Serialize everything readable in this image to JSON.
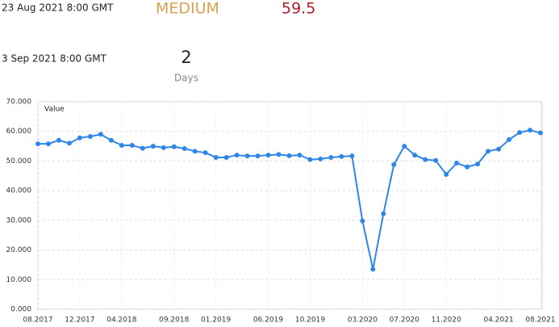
{
  "header": {
    "date": "23 Aug 2021 8:00 GMT",
    "level": "MEDIUM",
    "value": 59.5
  },
  "next": {
    "date": "3 Sep 2021 8:00 GMT",
    "count": 2,
    "unit": "Days"
  },
  "chart_data": {
    "type": "line",
    "y_label": "Value",
    "color": "#2f86e6",
    "grid": true,
    "categories": [
      "08.2017",
      null,
      null,
      null,
      "12.2017",
      null,
      null,
      null,
      "04.2018",
      null,
      null,
      null,
      null,
      "09.2018",
      null,
      null,
      null,
      "01.2019",
      null,
      null,
      null,
      null,
      "06.2019",
      null,
      null,
      null,
      "10.2019",
      null,
      null,
      null,
      null,
      "03.2020",
      null,
      null,
      null,
      "07.2020",
      null,
      null,
      null,
      "11.2020",
      null,
      null,
      null,
      null,
      "04.2021",
      null,
      null,
      null,
      "08.2021"
    ],
    "values": [
      55.8,
      55.8,
      57,
      56,
      57.8,
      58.3,
      59,
      57,
      55.3,
      55.3,
      54.3,
      55,
      54.5,
      54.8,
      54.2,
      53.3,
      52.8,
      51.2,
      51.2,
      52,
      51.7,
      51.7,
      52,
      52.2,
      51.8,
      52,
      50.5,
      50.7,
      51.2,
      51.5,
      51.7,
      29.8,
      13.5,
      32.2,
      48.8,
      55,
      52,
      50.5,
      50.2,
      45.5,
      49.3,
      48,
      49,
      53.3,
      54,
      57.2,
      59.6,
      60.4,
      59.5
    ],
    "ylim": [
      0,
      70
    ],
    "yticks": [
      {
        "value": 0,
        "label": "0.000"
      },
      {
        "value": 10,
        "label": "10.000"
      },
      {
        "value": 20,
        "label": "20.000"
      },
      {
        "value": 30,
        "label": "30.000"
      },
      {
        "value": 40,
        "label": "40.000"
      },
      {
        "value": 50,
        "label": "50.000"
      },
      {
        "value": 60,
        "label": "60.000"
      },
      {
        "value": 70,
        "label": "70.000"
      }
    ]
  }
}
